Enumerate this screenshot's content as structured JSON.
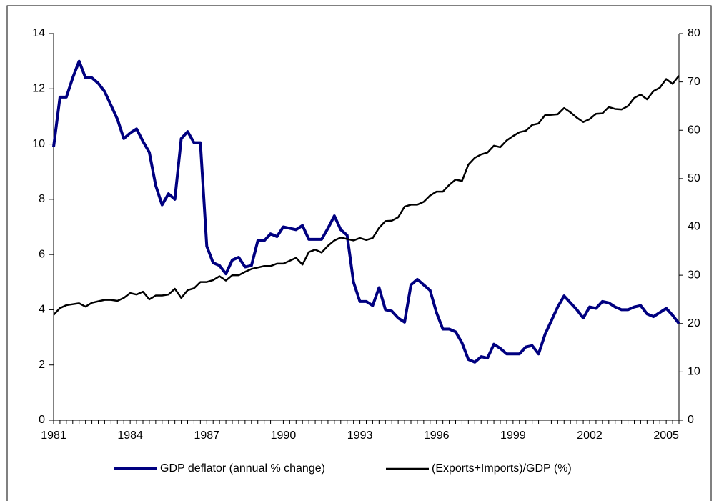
{
  "chart_data": {
    "type": "line",
    "categories": [
      "1981",
      null,
      null,
      null,
      null,
      null,
      null,
      null,
      null,
      null,
      null,
      null,
      "1984",
      null,
      null,
      null,
      null,
      null,
      null,
      null,
      null,
      null,
      null,
      null,
      "1987",
      null,
      null,
      null,
      null,
      null,
      null,
      null,
      null,
      null,
      null,
      null,
      "1990",
      null,
      null,
      null,
      null,
      null,
      null,
      null,
      null,
      null,
      null,
      null,
      "1993",
      null,
      null,
      null,
      null,
      null,
      null,
      null,
      null,
      null,
      null,
      null,
      "1996",
      null,
      null,
      null,
      null,
      null,
      null,
      null,
      null,
      null,
      null,
      null,
      "1999",
      null,
      null,
      null,
      null,
      null,
      null,
      null,
      null,
      null,
      null,
      null,
      "2002",
      null,
      null,
      null,
      null,
      null,
      null,
      null,
      null,
      null,
      null,
      null,
      "2005",
      null,
      null
    ],
    "series": [
      {
        "name": "GDP deflator (annual % change)",
        "color": "#000080",
        "axis": "y",
        "values": [
          9.9,
          11.7,
          11.7,
          12.4,
          13.0,
          12.4,
          12.4,
          12.2,
          11.9,
          11.4,
          10.9,
          10.2,
          10.4,
          10.55,
          10.1,
          9.7,
          8.5,
          7.8,
          8.2,
          8.0,
          10.2,
          10.45,
          10.05,
          10.05,
          6.3,
          5.7,
          5.6,
          5.3,
          5.8,
          5.9,
          5.55,
          5.6,
          6.5,
          6.5,
          6.75,
          6.65,
          7.0,
          6.95,
          6.9,
          7.05,
          6.55,
          6.55,
          6.55,
          6.95,
          7.4,
          6.9,
          6.7,
          5.0,
          4.3,
          4.3,
          4.15,
          4.8,
          4.0,
          3.95,
          3.7,
          3.55,
          4.9,
          5.1,
          4.9,
          4.7,
          3.9,
          3.3,
          3.3,
          3.2,
          2.8,
          2.2,
          2.1,
          2.3,
          2.25,
          2.75,
          2.6,
          2.4,
          2.4,
          2.4,
          2.65,
          2.7,
          2.4,
          3.1,
          3.6,
          4.1,
          4.5,
          4.25,
          4.0,
          3.7,
          4.1,
          4.05,
          4.3,
          4.25,
          4.1,
          4.0,
          4.0,
          4.1,
          4.15,
          3.85,
          3.75,
          3.9,
          4.05,
          3.8,
          3.5
        ]
      },
      {
        "name": "(Exports+Imports)/GDP (%)",
        "color": "#000000",
        "axis": "y2",
        "values": [
          21.8,
          23.2,
          23.8,
          24.0,
          24.2,
          23.5,
          24.3,
          24.6,
          24.9,
          24.9,
          24.7,
          25.3,
          26.3,
          26.0,
          26.6,
          25.0,
          25.8,
          25.8,
          26.0,
          27.2,
          25.3,
          26.9,
          27.3,
          28.6,
          28.6,
          29.0,
          29.8,
          28.9,
          30.0,
          30.0,
          30.7,
          31.3,
          31.6,
          31.9,
          31.9,
          32.4,
          32.4,
          33.0,
          33.6,
          32.2,
          34.8,
          35.3,
          34.7,
          36.1,
          37.2,
          37.8,
          37.5,
          37.2,
          37.7,
          37.3,
          37.7,
          39.8,
          41.2,
          41.3,
          42.0,
          44.2,
          44.6,
          44.6,
          45.2,
          46.5,
          47.3,
          47.3,
          48.7,
          49.8,
          49.5,
          52.9,
          54.3,
          55.0,
          55.4,
          56.8,
          56.5,
          57.9,
          58.8,
          59.6,
          59.9,
          61.1,
          61.4,
          63.1,
          63.2,
          63.3,
          64.6,
          63.7,
          62.6,
          61.7,
          62.3,
          63.4,
          63.5,
          64.8,
          64.4,
          64.3,
          65.0,
          66.7,
          67.4,
          66.4,
          68.1,
          68.8,
          70.6,
          69.6,
          71.3
        ]
      }
    ],
    "ylim": [
      0,
      14
    ],
    "yticks": [
      0,
      2,
      4,
      6,
      8,
      10,
      12,
      14
    ],
    "y2lim": [
      0,
      80
    ],
    "y2ticks": [
      0,
      10,
      20,
      30,
      40,
      50,
      60,
      70,
      80
    ],
    "grid": false,
    "legend": "bottom"
  }
}
